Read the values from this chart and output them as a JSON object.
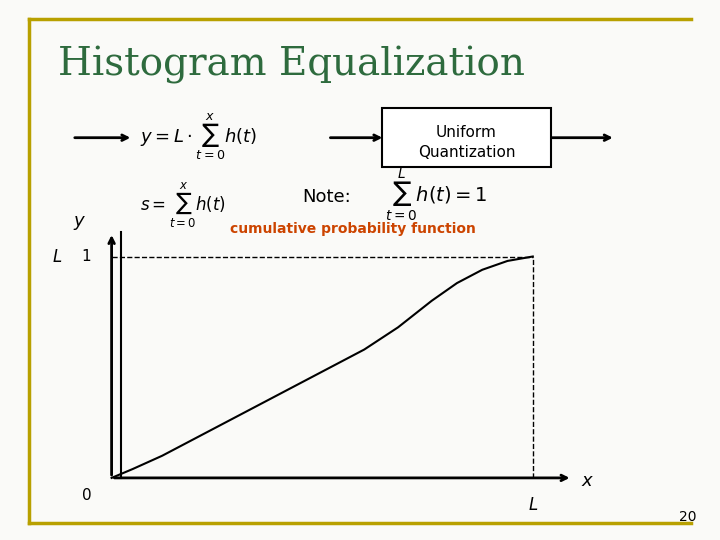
{
  "title": "Histogram Equalization",
  "title_color": "#2E6B3E",
  "title_fontsize": 28,
  "bg_color": "#FAFAF8",
  "border_color": "#B8A000",
  "slide_number": "20",
  "box_text_line1": "Uniform",
  "box_text_line2": "Quantization",
  "note_text": "Note:",
  "cumulative_text": "cumulative probability function",
  "cumulative_color": "#CC4400",
  "axis_label_y": "y",
  "axis_label_x": "x",
  "axis_label_L_y": "L",
  "axis_label_L_x": "L",
  "axis_label_0": "0",
  "axis_tick_1": "1",
  "curve_x": [
    0.0,
    0.05,
    0.12,
    0.2,
    0.3,
    0.42,
    0.52,
    0.6,
    0.68,
    0.76,
    0.82,
    0.88,
    0.94,
    1.0
  ],
  "curve_y": [
    0.0,
    0.04,
    0.1,
    0.18,
    0.28,
    0.4,
    0.5,
    0.58,
    0.68,
    0.8,
    0.88,
    0.94,
    0.98,
    1.0
  ]
}
